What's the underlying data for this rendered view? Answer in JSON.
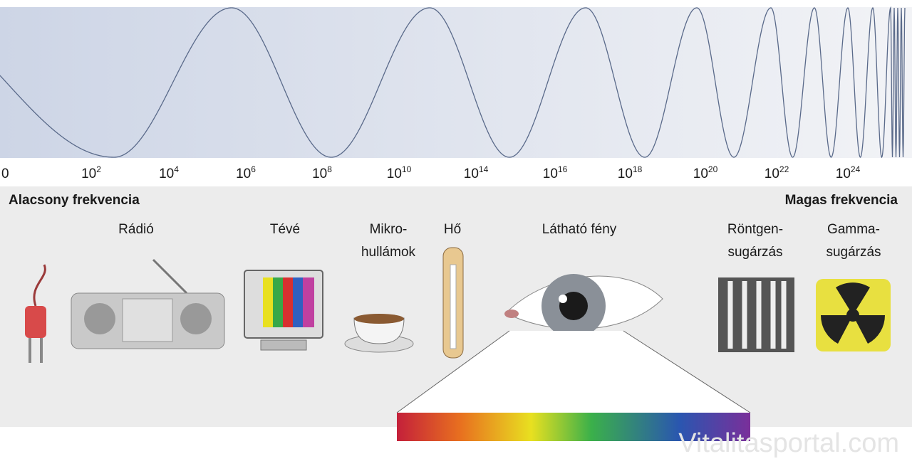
{
  "scale": [
    "0",
    {
      "base": "10",
      "exp": "2"
    },
    {
      "base": "10",
      "exp": "4"
    },
    {
      "base": "10",
      "exp": "6"
    },
    {
      "base": "10",
      "exp": "8"
    },
    {
      "base": "10",
      "exp": "10"
    },
    {
      "base": "10",
      "exp": "14"
    },
    {
      "base": "10",
      "exp": "16"
    },
    {
      "base": "10",
      "exp": "18"
    },
    {
      "base": "10",
      "exp": "20"
    },
    {
      "base": "10",
      "exp": "22"
    },
    {
      "base": "10",
      "exp": "24"
    }
  ],
  "low_label": "Alacsony frekvencia",
  "high_label": "Magas frekvencia",
  "bands": [
    {
      "lines": [
        "Rádió"
      ]
    },
    {
      "lines": [
        "Tévé"
      ]
    },
    {
      "lines": [
        "Mikro-",
        "hullámok"
      ]
    },
    {
      "lines": [
        "Hő"
      ]
    },
    {
      "lines": [
        "Látható fény"
      ]
    },
    {
      "lines": [
        "Röntgen-",
        "sugárzás"
      ]
    },
    {
      "lines": [
        "Gamma-",
        "sugárzás"
      ]
    }
  ],
  "watermark": "Vitalitasportal.com"
}
